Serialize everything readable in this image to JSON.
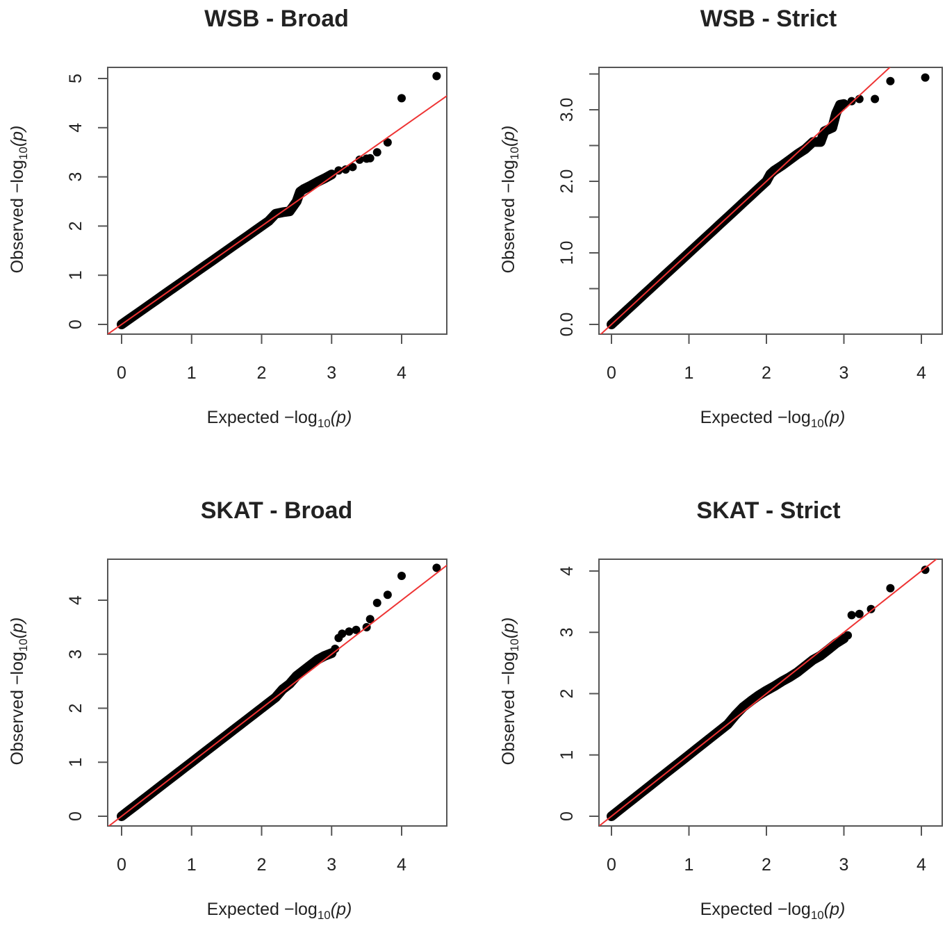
{
  "chart_data": [
    {
      "type": "scatter",
      "title": "WSB - Broad",
      "xlabel": {
        "prefix": "Expected",
        "log": "−log",
        "sub": "10",
        "var": "(p)"
      },
      "ylabel": {
        "prefix": "Observed",
        "log": "−log",
        "sub": "10",
        "var": "(p)"
      },
      "xlim": [
        0,
        4.6
      ],
      "ylim": [
        0,
        5.2
      ],
      "xticks": [
        0,
        1,
        2,
        3,
        4
      ],
      "xtick_labels": [
        "0",
        "1",
        "2",
        "3",
        "4"
      ],
      "yticks": [
        0,
        1,
        2,
        3,
        4,
        5
      ],
      "ytick_labels": [
        "0",
        "1",
        "2",
        "3",
        "4",
        "5"
      ],
      "reference_line": {
        "slope": 1,
        "intercept": 0,
        "color": "#ee3333"
      },
      "point_color": "#000000",
      "points": [
        [
          0,
          0
        ],
        [
          0.1,
          0.1
        ],
        [
          0.2,
          0.2
        ],
        [
          0.3,
          0.3
        ],
        [
          0.4,
          0.4
        ],
        [
          0.5,
          0.5
        ],
        [
          0.6,
          0.6
        ],
        [
          0.7,
          0.7
        ],
        [
          0.8,
          0.8
        ],
        [
          0.9,
          0.9
        ],
        [
          1.0,
          1.0
        ],
        [
          1.1,
          1.1
        ],
        [
          1.2,
          1.2
        ],
        [
          1.3,
          1.3
        ],
        [
          1.4,
          1.4
        ],
        [
          1.5,
          1.5
        ],
        [
          1.6,
          1.6
        ],
        [
          1.7,
          1.7
        ],
        [
          1.8,
          1.8
        ],
        [
          1.9,
          1.9
        ],
        [
          2.0,
          2.0
        ],
        [
          2.1,
          2.1
        ],
        [
          2.2,
          2.25
        ],
        [
          2.3,
          2.28
        ],
        [
          2.4,
          2.3
        ],
        [
          2.5,
          2.5
        ],
        [
          2.55,
          2.7
        ],
        [
          2.6,
          2.75
        ],
        [
          2.7,
          2.82
        ],
        [
          2.8,
          2.9
        ],
        [
          2.9,
          2.97
        ],
        [
          3.0,
          3.05
        ],
        [
          3.1,
          3.13
        ],
        [
          3.2,
          3.15
        ],
        [
          3.3,
          3.2
        ],
        [
          3.4,
          3.35
        ],
        [
          3.5,
          3.37
        ],
        [
          3.55,
          3.38
        ],
        [
          3.65,
          3.5
        ],
        [
          3.8,
          3.7
        ],
        [
          4.0,
          4.6
        ],
        [
          4.5,
          5.05
        ]
      ]
    },
    {
      "type": "scatter",
      "title": "WSB - Strict",
      "xlabel": {
        "prefix": "Expected",
        "log": "−log",
        "sub": "10",
        "var": "(p)"
      },
      "ylabel": {
        "prefix": "Observed",
        "log": "−log",
        "sub": "10",
        "var": "(p)"
      },
      "xlim": [
        0,
        4.1
      ],
      "ylim": [
        0,
        3.6
      ],
      "xticks": [
        0,
        1,
        2,
        3,
        4
      ],
      "xtick_labels": [
        "0",
        "1",
        "2",
        "3",
        "4"
      ],
      "yticks": [
        0,
        0.5,
        1,
        1.5,
        2,
        2.5,
        3,
        3.5
      ],
      "ytick_labels": [
        "0.0",
        "",
        "1.0",
        "",
        "2.0",
        "",
        "3.0",
        ""
      ],
      "reference_line": {
        "slope": 1,
        "intercept": 0,
        "color": "#ee3333"
      },
      "point_color": "#000000",
      "points": [
        [
          0,
          0
        ],
        [
          0.1,
          0.1
        ],
        [
          0.2,
          0.2
        ],
        [
          0.3,
          0.3
        ],
        [
          0.4,
          0.4
        ],
        [
          0.5,
          0.5
        ],
        [
          0.6,
          0.6
        ],
        [
          0.7,
          0.7
        ],
        [
          0.8,
          0.8
        ],
        [
          0.9,
          0.9
        ],
        [
          1.0,
          1.0
        ],
        [
          1.1,
          1.1
        ],
        [
          1.2,
          1.2
        ],
        [
          1.3,
          1.3
        ],
        [
          1.4,
          1.4
        ],
        [
          1.5,
          1.5
        ],
        [
          1.6,
          1.6
        ],
        [
          1.7,
          1.7
        ],
        [
          1.8,
          1.8
        ],
        [
          1.9,
          1.9
        ],
        [
          2.0,
          2.0
        ],
        [
          2.05,
          2.1
        ],
        [
          2.1,
          2.15
        ],
        [
          2.2,
          2.22
        ],
        [
          2.3,
          2.3
        ],
        [
          2.4,
          2.38
        ],
        [
          2.5,
          2.45
        ],
        [
          2.6,
          2.55
        ],
        [
          2.7,
          2.55
        ],
        [
          2.75,
          2.7
        ],
        [
          2.85,
          2.75
        ],
        [
          2.9,
          2.95
        ],
        [
          2.95,
          3.07
        ],
        [
          3.0,
          3.08
        ],
        [
          3.1,
          3.12
        ],
        [
          3.2,
          3.15
        ],
        [
          3.4,
          3.15
        ],
        [
          3.6,
          3.4
        ],
        [
          4.05,
          3.45
        ]
      ]
    },
    {
      "type": "scatter",
      "title": "SKAT - Broad",
      "xlabel": {
        "prefix": "Expected",
        "log": "−log",
        "sub": "10",
        "var": "(p)"
      },
      "ylabel": {
        "prefix": "Observed",
        "log": "−log",
        "sub": "10",
        "var": "(p)"
      },
      "xlim": [
        0,
        4.6
      ],
      "ylim": [
        0,
        4.7
      ],
      "xticks": [
        0,
        1,
        2,
        3,
        4
      ],
      "xtick_labels": [
        "0",
        "1",
        "2",
        "3",
        "4"
      ],
      "yticks": [
        0,
        1,
        2,
        3,
        4
      ],
      "ytick_labels": [
        "0",
        "1",
        "2",
        "3",
        "4"
      ],
      "reference_line": {
        "slope": 1,
        "intercept": 0,
        "color": "#ee3333"
      },
      "point_color": "#000000",
      "points": [
        [
          0,
          0
        ],
        [
          0.1,
          0.1
        ],
        [
          0.2,
          0.2
        ],
        [
          0.3,
          0.3
        ],
        [
          0.4,
          0.4
        ],
        [
          0.5,
          0.5
        ],
        [
          0.6,
          0.6
        ],
        [
          0.7,
          0.7
        ],
        [
          0.8,
          0.8
        ],
        [
          0.9,
          0.9
        ],
        [
          1.0,
          1.0
        ],
        [
          1.1,
          1.1
        ],
        [
          1.2,
          1.2
        ],
        [
          1.3,
          1.3
        ],
        [
          1.4,
          1.4
        ],
        [
          1.5,
          1.5
        ],
        [
          1.6,
          1.6
        ],
        [
          1.7,
          1.7
        ],
        [
          1.8,
          1.8
        ],
        [
          1.9,
          1.9
        ],
        [
          2.0,
          2.0
        ],
        [
          2.1,
          2.1
        ],
        [
          2.2,
          2.2
        ],
        [
          2.3,
          2.35
        ],
        [
          2.4,
          2.45
        ],
        [
          2.5,
          2.6
        ],
        [
          2.6,
          2.7
        ],
        [
          2.7,
          2.8
        ],
        [
          2.8,
          2.9
        ],
        [
          2.9,
          2.97
        ],
        [
          3.0,
          3.02
        ],
        [
          3.05,
          3.1
        ],
        [
          3.1,
          3.3
        ],
        [
          3.15,
          3.38
        ],
        [
          3.25,
          3.42
        ],
        [
          3.35,
          3.45
        ],
        [
          3.5,
          3.5
        ],
        [
          3.55,
          3.65
        ],
        [
          3.65,
          3.95
        ],
        [
          3.8,
          4.1
        ],
        [
          4.0,
          4.45
        ],
        [
          4.5,
          4.6
        ]
      ]
    },
    {
      "type": "scatter",
      "title": "SKAT - Strict",
      "xlabel": {
        "prefix": "Expected",
        "log": "−log",
        "sub": "10",
        "var": "(p)"
      },
      "ylabel": {
        "prefix": "Observed",
        "log": "−log",
        "sub": "10",
        "var": "(p)"
      },
      "xlim": [
        0,
        4.1
      ],
      "ylim": [
        0,
        4.15
      ],
      "xticks": [
        0,
        1,
        2,
        3,
        4
      ],
      "xtick_labels": [
        "0",
        "1",
        "2",
        "3",
        "4"
      ],
      "yticks": [
        0,
        1,
        2,
        3,
        4
      ],
      "ytick_labels": [
        "0",
        "1",
        "2",
        "3",
        "4"
      ],
      "reference_line": {
        "slope": 1,
        "intercept": 0,
        "color": "#ee3333"
      },
      "point_color": "#000000",
      "points": [
        [
          0,
          0
        ],
        [
          0.1,
          0.1
        ],
        [
          0.2,
          0.2
        ],
        [
          0.3,
          0.3
        ],
        [
          0.4,
          0.4
        ],
        [
          0.5,
          0.5
        ],
        [
          0.6,
          0.6
        ],
        [
          0.7,
          0.7
        ],
        [
          0.8,
          0.8
        ],
        [
          0.9,
          0.9
        ],
        [
          1.0,
          1.0
        ],
        [
          1.1,
          1.1
        ],
        [
          1.2,
          1.2
        ],
        [
          1.3,
          1.3
        ],
        [
          1.4,
          1.4
        ],
        [
          1.5,
          1.5
        ],
        [
          1.6,
          1.65
        ],
        [
          1.7,
          1.78
        ],
        [
          1.8,
          1.88
        ],
        [
          1.9,
          1.97
        ],
        [
          2.0,
          2.05
        ],
        [
          2.1,
          2.12
        ],
        [
          2.2,
          2.2
        ],
        [
          2.3,
          2.27
        ],
        [
          2.4,
          2.35
        ],
        [
          2.5,
          2.45
        ],
        [
          2.6,
          2.55
        ],
        [
          2.7,
          2.62
        ],
        [
          2.8,
          2.72
        ],
        [
          2.9,
          2.82
        ],
        [
          3.0,
          2.9
        ],
        [
          3.05,
          2.95
        ],
        [
          3.1,
          3.28
        ],
        [
          3.2,
          3.3
        ],
        [
          3.35,
          3.38
        ],
        [
          3.6,
          3.72
        ],
        [
          4.05,
          4.02
        ]
      ]
    }
  ]
}
